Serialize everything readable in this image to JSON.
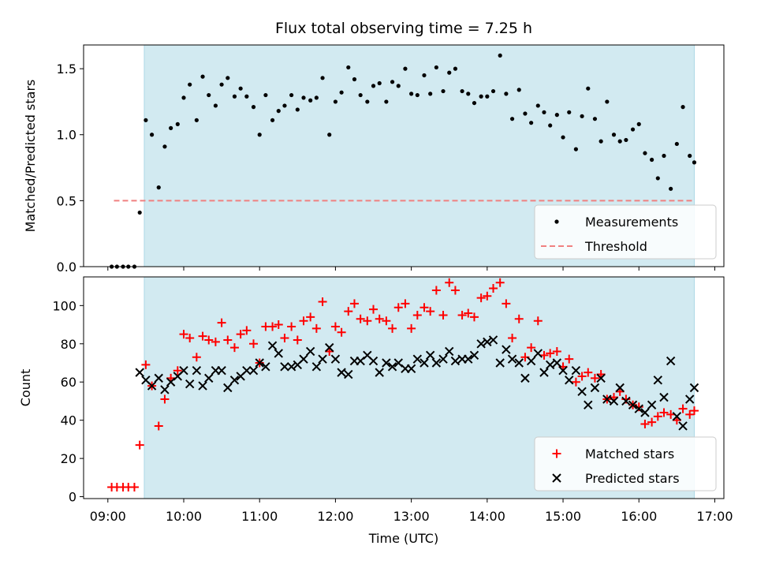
{
  "title": "Flux total observing time = 7.25 h",
  "colors": {
    "shade": "#add8e6",
    "measurement": "#000000",
    "threshold": "#f08080",
    "matched": "#ff0000",
    "predicted": "#000000"
  },
  "chart_data": [
    {
      "type": "scatter",
      "name": "ratio",
      "ylabel": "Matched/Predicted stars",
      "ylim": [
        0,
        1.68
      ],
      "yticks": [
        0.0,
        0.5,
        1.0,
        1.5
      ],
      "ytick_labels": [
        "0.0",
        "0.5",
        "1.0",
        "1.5"
      ],
      "shaded_span": [
        9.48,
        16.73
      ],
      "threshold": {
        "value": 0.5,
        "x_range": [
          9.08,
          16.73
        ],
        "name": "Threshold"
      },
      "legend": {
        "position": "lower-right",
        "entries": [
          "Measurements",
          "Threshold"
        ]
      },
      "series": [
        {
          "name": "Measurements",
          "x": [
            9.05,
            9.12,
            9.2,
            9.27,
            9.35,
            9.42,
            9.5,
            9.58,
            9.67,
            9.75,
            9.83,
            9.92,
            10.0,
            10.08,
            10.17,
            10.25,
            10.33,
            10.42,
            10.5,
            10.58,
            10.67,
            10.75,
            10.83,
            10.92,
            11.0,
            11.08,
            11.17,
            11.25,
            11.33,
            11.42,
            11.5,
            11.58,
            11.67,
            11.75,
            11.83,
            11.92,
            12.0,
            12.08,
            12.17,
            12.25,
            12.33,
            12.42,
            12.5,
            12.58,
            12.67,
            12.75,
            12.83,
            12.92,
            13.0,
            13.08,
            13.17,
            13.25,
            13.33,
            13.42,
            13.5,
            13.58,
            13.67,
            13.75,
            13.83,
            13.92,
            14.0,
            14.08,
            14.17,
            14.25,
            14.33,
            14.42,
            14.5,
            14.58,
            14.67,
            14.75,
            14.83,
            14.92,
            15.0,
            15.08,
            15.17,
            15.25,
            15.33,
            15.42,
            15.5,
            15.58,
            15.67,
            15.75,
            15.83,
            15.92,
            16.0,
            16.08,
            16.17,
            16.25,
            16.33,
            16.42,
            16.5,
            16.58,
            16.67,
            16.73
          ],
          "y": [
            0.0,
            0.0,
            0.0,
            0.0,
            0.0,
            0.41,
            1.11,
            1.0,
            0.6,
            0.91,
            1.05,
            1.08,
            1.28,
            1.38,
            1.11,
            1.44,
            1.3,
            1.22,
            1.38,
            1.43,
            1.29,
            1.35,
            1.29,
            1.21,
            1.0,
            1.3,
            1.11,
            1.18,
            1.22,
            1.3,
            1.19,
            1.28,
            1.26,
            1.28,
            1.43,
            1.0,
            1.25,
            1.32,
            1.51,
            1.42,
            1.3,
            1.25,
            1.37,
            1.39,
            1.25,
            1.4,
            1.37,
            1.5,
            1.31,
            1.3,
            1.45,
            1.31,
            1.51,
            1.33,
            1.47,
            1.5,
            1.33,
            1.31,
            1.24,
            1.29,
            1.29,
            1.33,
            1.6,
            1.31,
            1.12,
            1.34,
            1.16,
            1.09,
            1.22,
            1.17,
            1.07,
            1.15,
            0.98,
            1.17,
            0.89,
            1.14,
            1.35,
            1.12,
            0.95,
            1.25,
            1.0,
            0.95,
            0.96,
            1.04,
            1.08,
            0.86,
            0.81,
            0.67,
            0.84,
            0.59,
            0.93,
            1.21,
            0.84,
            0.79
          ]
        }
      ]
    },
    {
      "type": "scatter",
      "name": "counts",
      "ylabel": "Count",
      "xlabel": "Time (UTC)",
      "xlim": [
        8.68,
        17.12
      ],
      "ylim": [
        -1,
        115
      ],
      "yticks": [
        0,
        20,
        40,
        60,
        80,
        100
      ],
      "ytick_labels": [
        "0",
        "20",
        "40",
        "60",
        "80",
        "100"
      ],
      "xticks": [
        9,
        10,
        11,
        12,
        13,
        14,
        15,
        16,
        17
      ],
      "xtick_labels": [
        "09:00",
        "10:00",
        "11:00",
        "12:00",
        "13:00",
        "14:00",
        "15:00",
        "16:00",
        "17:00"
      ],
      "shaded_span": [
        9.48,
        16.73
      ],
      "legend": {
        "position": "lower-right",
        "entries": [
          "Matched stars",
          "Predicted stars"
        ]
      },
      "series": [
        {
          "name": "Matched stars",
          "marker": "plus",
          "x": [
            9.05,
            9.12,
            9.2,
            9.27,
            9.35,
            9.42,
            9.5,
            9.58,
            9.67,
            9.75,
            9.83,
            9.92,
            10.0,
            10.08,
            10.17,
            10.25,
            10.33,
            10.42,
            10.5,
            10.58,
            10.67,
            10.75,
            10.83,
            10.92,
            11.0,
            11.08,
            11.17,
            11.25,
            11.33,
            11.42,
            11.5,
            11.58,
            11.67,
            11.75,
            11.83,
            11.92,
            12.0,
            12.08,
            12.17,
            12.25,
            12.33,
            12.42,
            12.5,
            12.58,
            12.67,
            12.75,
            12.83,
            12.92,
            13.0,
            13.08,
            13.17,
            13.25,
            13.33,
            13.42,
            13.5,
            13.58,
            13.67,
            13.75,
            13.83,
            13.92,
            14.0,
            14.08,
            14.17,
            14.25,
            14.33,
            14.42,
            14.5,
            14.58,
            14.67,
            14.75,
            14.83,
            14.92,
            15.0,
            15.08,
            15.17,
            15.25,
            15.33,
            15.42,
            15.5,
            15.58,
            15.67,
            15.75,
            15.83,
            15.92,
            16.0,
            16.08,
            16.17,
            16.25,
            16.33,
            16.42,
            16.5,
            16.58,
            16.67,
            16.73
          ],
          "y": [
            5,
            5,
            5,
            5,
            5,
            27,
            69,
            58,
            37,
            51,
            62,
            66,
            85,
            83,
            73,
            84,
            82,
            81,
            91,
            82,
            78,
            85,
            87,
            80,
            70,
            89,
            89,
            90,
            83,
            89,
            82,
            92,
            94,
            88,
            102,
            76,
            89,
            86,
            97,
            101,
            93,
            92,
            98,
            93,
            92,
            88,
            99,
            101,
            88,
            95,
            99,
            97,
            108,
            95,
            112,
            108,
            95,
            96,
            94,
            104,
            105,
            109,
            112,
            101,
            83,
            93,
            73,
            78,
            92,
            74,
            75,
            76,
            68,
            72,
            60,
            63,
            65,
            62,
            64,
            51,
            52,
            55,
            51,
            48,
            47,
            38,
            39,
            42,
            44,
            43,
            40,
            46,
            43,
            45
          ]
        },
        {
          "name": "Predicted stars",
          "marker": "x",
          "x": [
            9.42,
            9.5,
            9.58,
            9.67,
            9.75,
            9.83,
            9.92,
            10.0,
            10.08,
            10.17,
            10.25,
            10.33,
            10.42,
            10.5,
            10.58,
            10.67,
            10.75,
            10.83,
            10.92,
            11.0,
            11.08,
            11.17,
            11.25,
            11.33,
            11.42,
            11.5,
            11.58,
            11.67,
            11.75,
            11.83,
            11.92,
            12.0,
            12.08,
            12.17,
            12.25,
            12.33,
            12.42,
            12.5,
            12.58,
            12.67,
            12.75,
            12.83,
            12.92,
            13.0,
            13.08,
            13.17,
            13.25,
            13.33,
            13.42,
            13.5,
            13.58,
            13.67,
            13.75,
            13.83,
            13.92,
            14.0,
            14.08,
            14.17,
            14.25,
            14.33,
            14.42,
            14.5,
            14.58,
            14.67,
            14.75,
            14.83,
            14.92,
            15.0,
            15.08,
            15.17,
            15.25,
            15.33,
            15.42,
            15.5,
            15.58,
            15.67,
            15.75,
            15.83,
            15.92,
            16.0,
            16.08,
            16.17,
            16.25,
            16.33,
            16.42,
            16.5,
            16.58,
            16.67,
            16.73
          ],
          "y": [
            65,
            61,
            58,
            62,
            56,
            60,
            63,
            66,
            59,
            66,
            58,
            62,
            66,
            66,
            57,
            61,
            63,
            66,
            66,
            70,
            68,
            79,
            75,
            68,
            68,
            69,
            72,
            76,
            68,
            72,
            78,
            72,
            65,
            64,
            71,
            71,
            74,
            71,
            65,
            70,
            68,
            70,
            67,
            67,
            72,
            70,
            74,
            70,
            72,
            76,
            71,
            72,
            72,
            74,
            80,
            81,
            82,
            70,
            77,
            72,
            70,
            62,
            71,
            75,
            65,
            69,
            70,
            66,
            61,
            66,
            55,
            48,
            57,
            62,
            51,
            50,
            57,
            50,
            48,
            46,
            44,
            48,
            61,
            52,
            71,
            42,
            37,
            51,
            57
          ]
        }
      ]
    }
  ]
}
